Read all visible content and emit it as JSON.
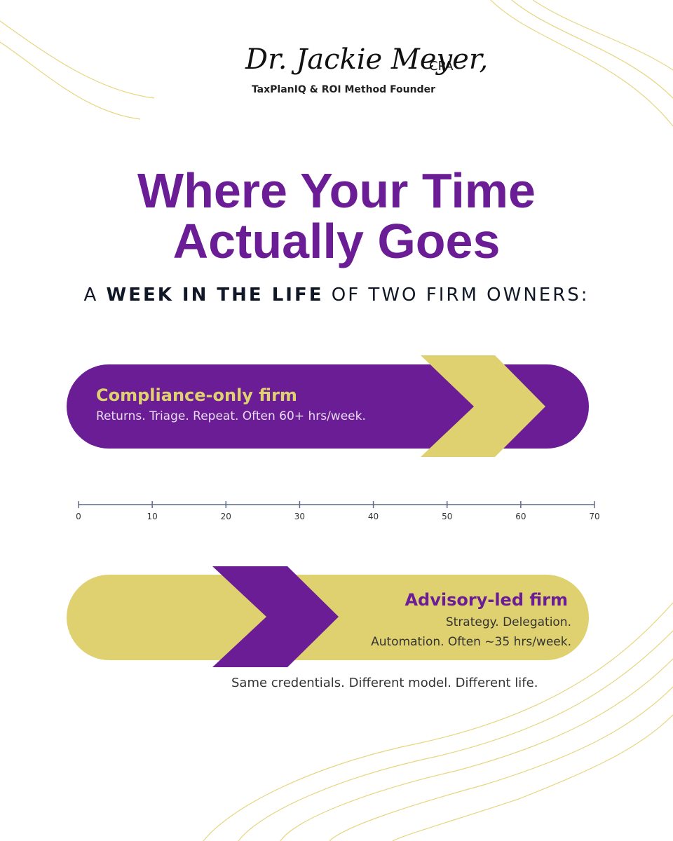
{
  "header": {
    "name": "Dr. Jackie Meyer,",
    "credential": "CPA",
    "tagline": "TaxPlanIQ & ROI Method Founder"
  },
  "title": "Where Your Time Actually Goes",
  "subtitle": {
    "lead": "A",
    "emphasis": "WEEK IN THE LIFE",
    "rest": "OF TWO FIRM OWNERS:"
  },
  "compliance": {
    "label": "Compliance-only firm",
    "description": "Returns. Triage. Repeat. Often 60+ hrs/week."
  },
  "axis": {
    "ticks": [
      0,
      10,
      20,
      30,
      40,
      50,
      60,
      70
    ]
  },
  "advisory": {
    "label": "Advisory-led firm",
    "description": [
      "Strategy. Delegation.",
      "Automation. Often ~35 hrs/week."
    ]
  },
  "footer": "Same credentials. Different model. Different life."
}
